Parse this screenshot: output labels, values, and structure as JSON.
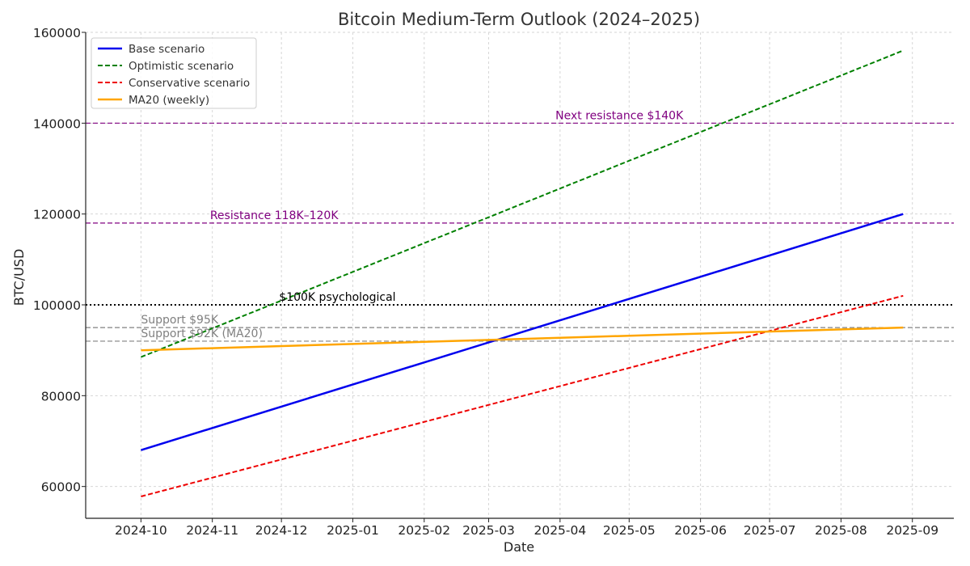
{
  "chart_data": {
    "type": "line",
    "title": "Bitcoin Medium-Term Outlook (2024–2025)",
    "xlabel": "Date",
    "ylabel": "BTC/USD",
    "xlim": [
      "2024-09-07",
      "2025-09-19"
    ],
    "ylim": [
      53000,
      160000
    ],
    "grid": true,
    "legend_position": "top-left",
    "x_ticks": [
      "2024-10",
      "2024-11",
      "2024-12",
      "2025-01",
      "2025-02",
      "2025-03",
      "2025-04",
      "2025-05",
      "2025-06",
      "2025-07",
      "2025-08",
      "2025-09"
    ],
    "y_ticks": [
      60000,
      80000,
      100000,
      120000,
      140000,
      160000
    ],
    "series": [
      {
        "name": "Base scenario",
        "color": "#0000ee",
        "style": "solid",
        "x": [
          "2024-10-01",
          "2025-08-28"
        ],
        "values": [
          68000,
          120000
        ]
      },
      {
        "name": "Optimistic scenario",
        "color": "#008000",
        "style": "dashed",
        "x": [
          "2024-10-01",
          "2025-08-28"
        ],
        "values": [
          88500,
          156000
        ]
      },
      {
        "name": "Conservative scenario",
        "color": "#ee0000",
        "style": "dashed",
        "x": [
          "2024-10-01",
          "2025-08-28"
        ],
        "values": [
          57800,
          102000
        ]
      },
      {
        "name": "MA20 (weekly)",
        "color": "#ffa500",
        "style": "solid",
        "x": [
          "2024-10-01",
          "2025-08-28"
        ],
        "values": [
          90000,
          95000
        ]
      }
    ],
    "reference_lines": [
      {
        "label": "Next resistance $140K",
        "value": 140000,
        "color": "#800080",
        "style": "dashed",
        "label_x": "2024-12-27",
        "label_date": "2025-03-30"
      },
      {
        "label": "Resistance 118K–120K",
        "value": 118000,
        "color": "#800080",
        "style": "dashed",
        "label_date": "2024-10-31"
      },
      {
        "label": "$100K psychological",
        "value": 100000,
        "color": "#000000",
        "style": "dotted",
        "label_date": "2024-11-30"
      },
      {
        "label": "Support $95K",
        "value": 95000,
        "color": "#808080",
        "style": "dashed",
        "label_date": "2024-10-01"
      },
      {
        "label": "Support $92K (MA20)",
        "value": 92000,
        "color": "#808080",
        "style": "dashed",
        "label_date": "2024-10-01"
      }
    ]
  }
}
